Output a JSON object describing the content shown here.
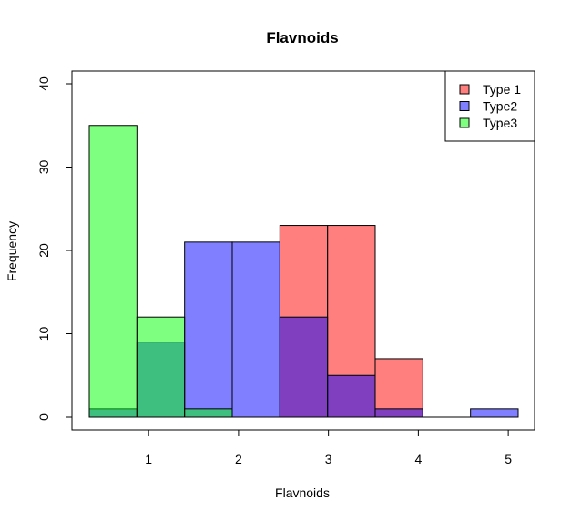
{
  "chart_data": {
    "type": "bar",
    "title": "Flavnoids",
    "xlabel": "Flavnoids",
    "ylabel": "Frequency",
    "xlim": [
      0.34,
      5.1
    ],
    "ylim": [
      0,
      40
    ],
    "x_ticks": [
      1,
      2,
      3,
      4,
      5
    ],
    "y_ticks": [
      0,
      10,
      20,
      30,
      40
    ],
    "bin_edges": [
      0.34,
      0.87,
      1.4,
      1.93,
      2.46,
      2.99,
      3.52,
      4.05,
      4.58,
      5.11
    ],
    "series": [
      {
        "name": "Type 1",
        "color": "#FF000080",
        "values": [
          0,
          0,
          0,
          0,
          23,
          23,
          7,
          0,
          0
        ]
      },
      {
        "name": "Type2",
        "color": "#0000FF80",
        "values": [
          1,
          9,
          21,
          21,
          12,
          5,
          1,
          0,
          1
        ]
      },
      {
        "name": "Type3",
        "color": "#00FF0080",
        "values": [
          35,
          12,
          1,
          0,
          0,
          0,
          0,
          0,
          0
        ]
      }
    ],
    "grid": false,
    "legend_position": "top-right"
  }
}
